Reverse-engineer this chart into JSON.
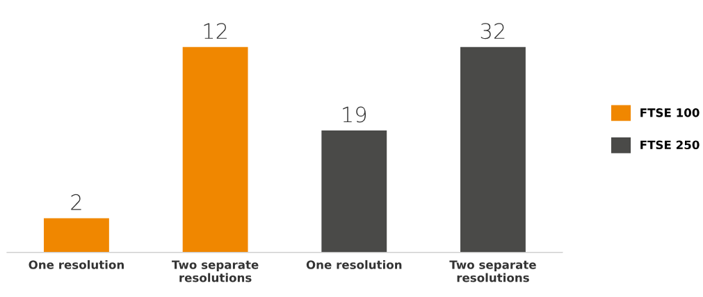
{
  "chart_data": {
    "type": "bar",
    "categories": [
      "One resolution",
      "Two separate\nresolutions",
      "One resolution",
      "Two separate\nresolutions"
    ],
    "series": [
      {
        "name": "FTSE 100",
        "color": "#f08700",
        "values": [
          2,
          12,
          null,
          null
        ]
      },
      {
        "name": "FTSE 250",
        "color": "#4a4a48",
        "values": [
          null,
          null,
          19,
          32
        ],
        "axis": "y2"
      }
    ],
    "tick_labels": "x",
    "data_labels": true,
    "legend": "right",
    "grid": false
  }
}
